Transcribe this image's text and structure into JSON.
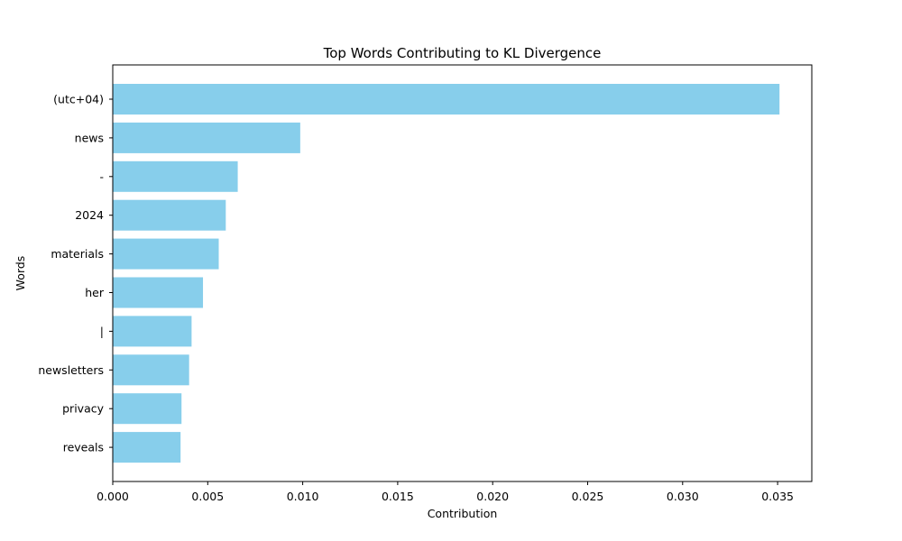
{
  "chart_data": {
    "type": "bar",
    "orientation": "horizontal",
    "title": "Top Words Contributing to KL Divergence",
    "xlabel": "Contribution",
    "ylabel": "Words",
    "categories": [
      "(utc+04)",
      "news",
      "-",
      "2024",
      "materials",
      "her",
      "|",
      "newsletters",
      "privacy",
      "reveals"
    ],
    "values": [
      0.0351,
      0.00987,
      0.00658,
      0.00595,
      0.00558,
      0.00475,
      0.00415,
      0.00402,
      0.00362,
      0.00357
    ],
    "xlim": [
      0,
      0.0368
    ],
    "xticks": [
      "0.000",
      "0.005",
      "0.010",
      "0.015",
      "0.020",
      "0.025",
      "0.030",
      "0.035"
    ],
    "bar_color": "#87ceeb",
    "grid": false,
    "legend": false
  }
}
